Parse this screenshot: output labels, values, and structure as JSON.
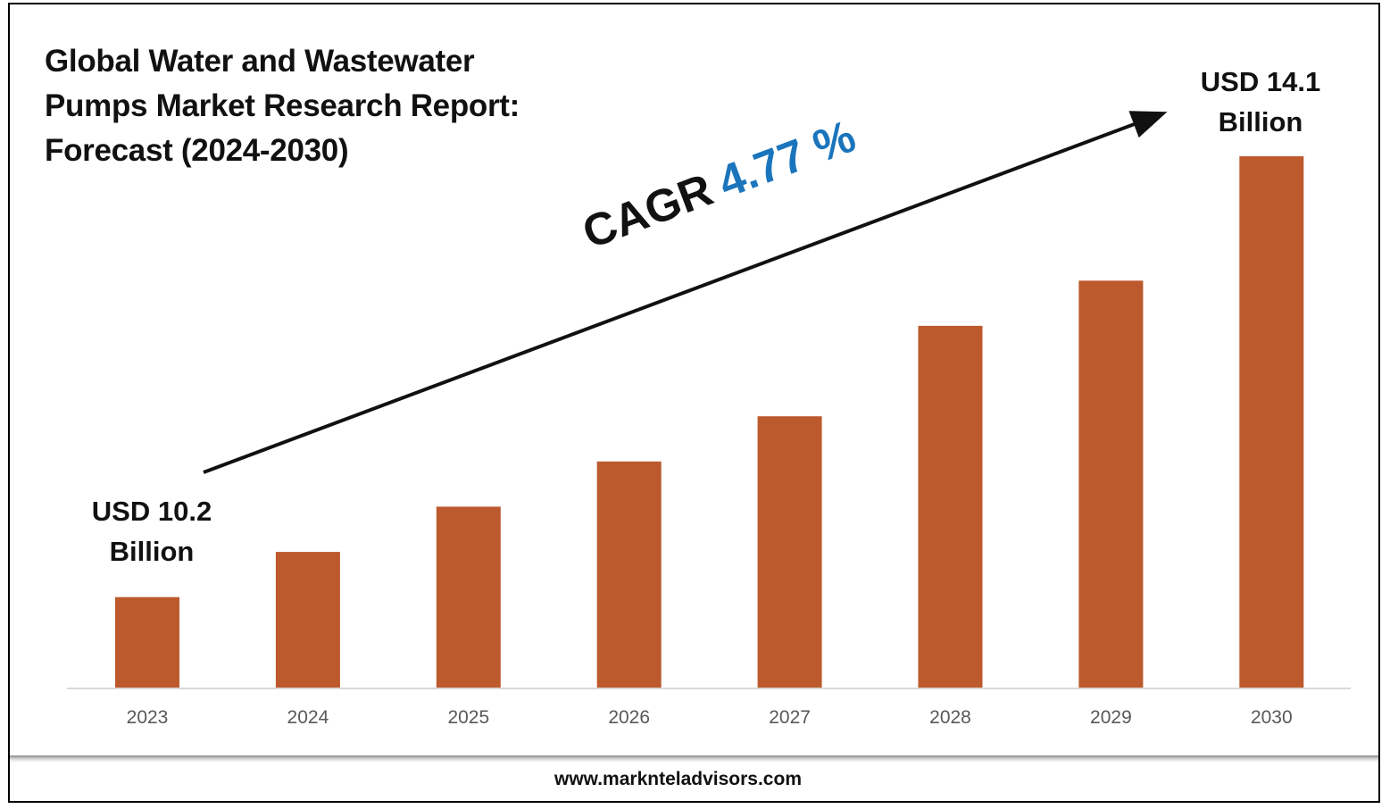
{
  "chart_data": {
    "type": "bar",
    "title": "Global Water and Wastewater Pumps Market Research Report: Forecast (2024-2030)",
    "categories": [
      "2023",
      "2024",
      "2025",
      "2026",
      "2027",
      "2028",
      "2029",
      "2030"
    ],
    "values": [
      10.2,
      10.6,
      11.0,
      11.4,
      11.8,
      12.6,
      13.0,
      14.1
    ],
    "unit": "USD Billion",
    "ylim": [
      9.4,
      14.1
    ],
    "xlabel": "",
    "ylabel": "",
    "grid": false,
    "bar_color": "#bc5a2d",
    "annotations": {
      "start_label_line1": "USD 10.2",
      "start_label_line2": "Billion",
      "end_label_line1": "USD 14.1",
      "end_label_line2": "Billion",
      "cagr_text": "CAGR",
      "cagr_value": "4.77 %",
      "cagr_color": "#1b75bc"
    }
  },
  "footer": {
    "website": "www.marknteladvisors.com"
  }
}
